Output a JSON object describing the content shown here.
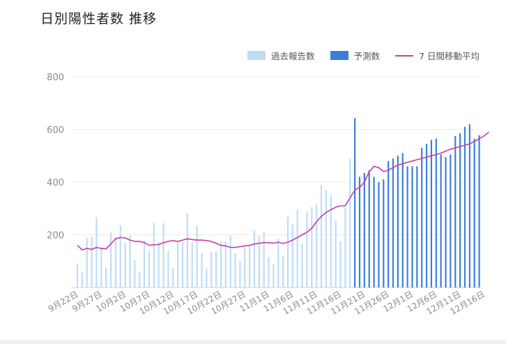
{
  "title": "日別陽性者数 推移",
  "colors": {
    "past": "#bfdcf5",
    "forecast": "#3d7fd6",
    "avg": "#c93aa8",
    "grid": "#ececec",
    "axis": "#999999"
  },
  "chart_data": {
    "type": "bar",
    "title": "日別陽性者数 推移",
    "xlabel": "",
    "ylabel": "",
    "ylim": [
      0,
      800
    ],
    "yticks": [
      200,
      400,
      600,
      800
    ],
    "grid": true,
    "legend_position": "top-right",
    "legend": [
      "過去報告数",
      "予測数",
      "7 日間移動平均"
    ],
    "xtick_labels": [
      "9月22日",
      "9月27日",
      "10月2日",
      "10月7日",
      "10月12日",
      "10月17日",
      "10月22日",
      "10月27日",
      "11月1日",
      "11月6日",
      "11月11日",
      "11月16日",
      "11月21日",
      "11月26日",
      "12月1日",
      "12月6日",
      "12月11日",
      "12月16日"
    ],
    "series": [
      {
        "name": "過去報告数",
        "type": "bar",
        "values": [
          88,
          57,
          188,
          193,
          268,
          147,
          75,
          208,
          190,
          235,
          170,
          197,
          104,
          60,
          178,
          140,
          245,
          172,
          244,
          140,
          75,
          173,
          170,
          280,
          170,
          235,
          130,
          72,
          135,
          140,
          175,
          175,
          195,
          130,
          100,
          150,
          160,
          218,
          195,
          210,
          115,
          88,
          185,
          120,
          268,
          240,
          295,
          165,
          290,
          305,
          315,
          390,
          370,
          350,
          255,
          175,
          302,
          490
        ]
      },
      {
        "name": "予測数",
        "type": "bar",
        "values": [
          643,
          420,
          435,
          445,
          420,
          400,
          410,
          480,
          490,
          500,
          510,
          460,
          460,
          460,
          530,
          545,
          560,
          565,
          505,
          495,
          505,
          575,
          585,
          610,
          620,
          565,
          578
        ]
      },
      {
        "name": "7 日間移動平均",
        "type": "line",
        "values": [
          160,
          143,
          148,
          145,
          152,
          148,
          147,
          165,
          185,
          190,
          188,
          180,
          175,
          175,
          170,
          160,
          162,
          163,
          170,
          175,
          178,
          175,
          180,
          185,
          182,
          180,
          180,
          178,
          175,
          168,
          160,
          158,
          152,
          152,
          155,
          158,
          160,
          165,
          168,
          170,
          170,
          168,
          172,
          167,
          172,
          180,
          190,
          200,
          210,
          225,
          250,
          270,
          285,
          295,
          305,
          310,
          310,
          340,
          370,
          380,
          400,
          440,
          460,
          455,
          440,
          445,
          455,
          465,
          470,
          475,
          480,
          485,
          490,
          495,
          500,
          505,
          510,
          518,
          525,
          530,
          535,
          540,
          545,
          555,
          565,
          575,
          590
        ]
      }
    ]
  }
}
